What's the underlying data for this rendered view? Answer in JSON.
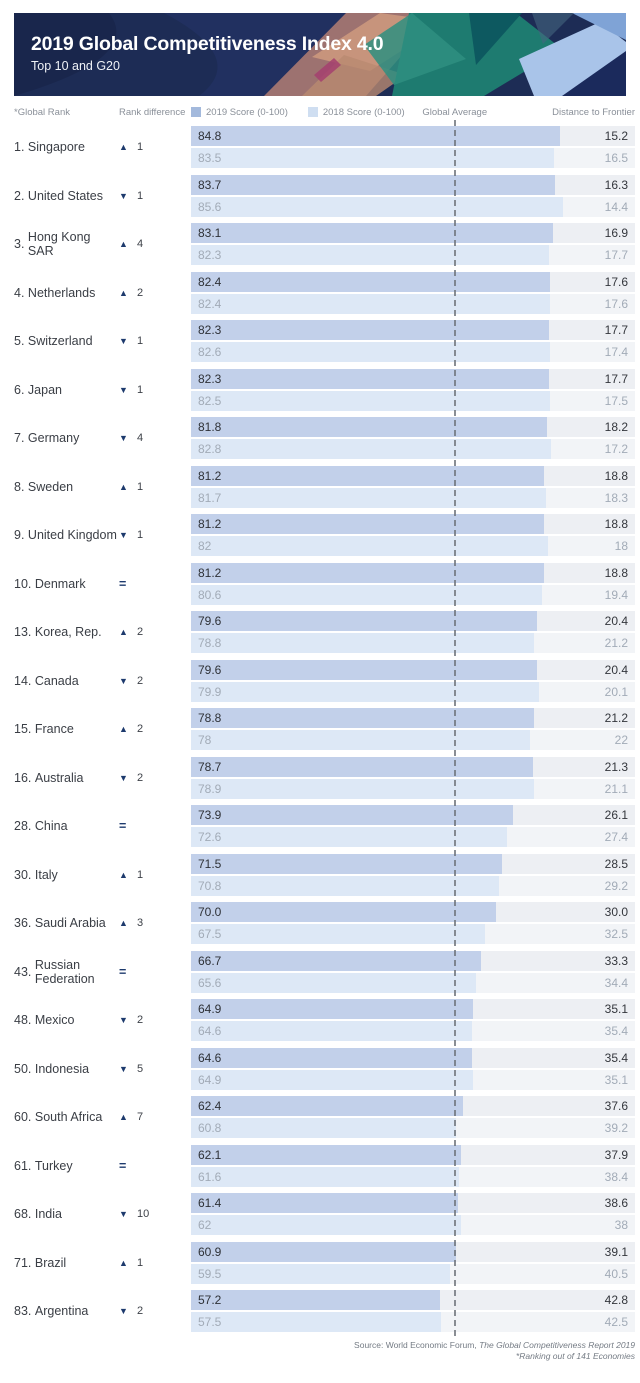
{
  "header": {
    "title": "2019 Global Competitiveness Index 4.0",
    "subtitle": "Top 10 and G20"
  },
  "columns": {
    "global_rank": "*Global Rank",
    "rank_difference": "Rank difference",
    "global_average": "Global Average",
    "distance_to_frontier": "Distance to Frontier"
  },
  "legend": {
    "score_2019": "2019 Score (0-100)",
    "score_2018": "2018 Score (0-100)"
  },
  "icons": {
    "up": "▲",
    "down": "▼",
    "same": "="
  },
  "colors": {
    "banner_bg": "#1d2c55",
    "bar_2019": "#c2d0ea",
    "bar_2018": "#dde8f6",
    "track_2019": "#edeff3",
    "track_2018": "#f2f4f7",
    "legend_2019": "#a3b9dc",
    "legend_2018": "#cfdef1",
    "marker": "#1d3a6d",
    "average_line": "#6e737a"
  },
  "footer": {
    "source_prefix": "Source:  World Economic Forum, ",
    "source_title": "The Global Competitiveness Report 2019",
    "note": "*Ranking out of 141 Economies"
  },
  "chart_data": {
    "type": "bar",
    "orientation": "horizontal",
    "title": "2019 Global Competitiveness Index 4.0",
    "subtitle": "Top 10 and G20",
    "xlim": [
      0,
      100
    ],
    "legend": [
      "2019 Score (0-100)",
      "2018 Score (0-100)"
    ],
    "global_average_approx": 60.6,
    "rows": [
      {
        "rank": "1.",
        "name": "Singapore",
        "dir": "up",
        "diff": "1",
        "s19": "84.8",
        "s18": "83.5",
        "d19": "15.2",
        "d18": "16.5"
      },
      {
        "rank": "2.",
        "name": "United States",
        "dir": "down",
        "diff": "1",
        "s19": "83.7",
        "s18": "85.6",
        "d19": "16.3",
        "d18": "14.4"
      },
      {
        "rank": "3.",
        "name": "Hong Kong SAR",
        "dir": "up",
        "diff": "4",
        "s19": "83.1",
        "s18": "82.3",
        "d19": "16.9",
        "d18": "17.7"
      },
      {
        "rank": "4.",
        "name": "Netherlands",
        "dir": "up",
        "diff": "2",
        "s19": "82.4",
        "s18": "82.4",
        "d19": "17.6",
        "d18": "17.6"
      },
      {
        "rank": "5.",
        "name": "Switzerland",
        "dir": "down",
        "diff": "1",
        "s19": "82.3",
        "s18": "82.6",
        "d19": "17.7",
        "d18": "17.4"
      },
      {
        "rank": "6.",
        "name": "Japan",
        "dir": "down",
        "diff": "1",
        "s19": "82.3",
        "s18": "82.5",
        "d19": "17.7",
        "d18": "17.5"
      },
      {
        "rank": "7.",
        "name": "Germany",
        "dir": "down",
        "diff": "4",
        "s19": "81.8",
        "s18": "82.8",
        "d19": "18.2",
        "d18": "17.2"
      },
      {
        "rank": "8.",
        "name": "Sweden",
        "dir": "up",
        "diff": "1",
        "s19": "81.2",
        "s18": "81.7",
        "d19": "18.8",
        "d18": "18.3"
      },
      {
        "rank": "9.",
        "name": "United Kingdom",
        "dir": "down",
        "diff": "1",
        "s19": "81.2",
        "s18": "82",
        "d19": "18.8",
        "d18": "18"
      },
      {
        "rank": "10.",
        "name": "Denmark",
        "dir": "same",
        "diff": "",
        "s19": "81.2",
        "s18": "80.6",
        "d19": "18.8",
        "d18": "19.4"
      },
      {
        "rank": "13.",
        "name": "Korea, Rep.",
        "dir": "up",
        "diff": "2",
        "s19": "79.6",
        "s18": "78.8",
        "d19": "20.4",
        "d18": "21.2"
      },
      {
        "rank": "14.",
        "name": "Canada",
        "dir": "down",
        "diff": "2",
        "s19": "79.6",
        "s18": "79.9",
        "d19": "20.4",
        "d18": "20.1"
      },
      {
        "rank": "15.",
        "name": "France",
        "dir": "up",
        "diff": "2",
        "s19": "78.8",
        "s18": "78",
        "d19": "21.2",
        "d18": "22"
      },
      {
        "rank": "16.",
        "name": "Australia",
        "dir": "down",
        "diff": "2",
        "s19": "78.7",
        "s18": "78.9",
        "d19": "21.3",
        "d18": "21.1"
      },
      {
        "rank": "28.",
        "name": "China",
        "dir": "same",
        "diff": "",
        "s19": "73.9",
        "s18": "72.6",
        "d19": "26.1",
        "d18": "27.4"
      },
      {
        "rank": "30.",
        "name": "Italy",
        "dir": "up",
        "diff": "1",
        "s19": "71.5",
        "s18": "70.8",
        "d19": "28.5",
        "d18": "29.2"
      },
      {
        "rank": "36.",
        "name": "Saudi Arabia",
        "dir": "up",
        "diff": "3",
        "s19": "70.0",
        "s18": "67.5",
        "d19": "30.0",
        "d18": "32.5"
      },
      {
        "rank": "43.",
        "name": "Russian Federation",
        "dir": "same",
        "diff": "",
        "s19": "66.7",
        "s18": "65.6",
        "d19": "33.3",
        "d18": "34.4"
      },
      {
        "rank": "48.",
        "name": "Mexico",
        "dir": "down",
        "diff": "2",
        "s19": "64.9",
        "s18": "64.6",
        "d19": "35.1",
        "d18": "35.4"
      },
      {
        "rank": "50.",
        "name": "Indonesia",
        "dir": "down",
        "diff": "5",
        "s19": "64.6",
        "s18": "64.9",
        "d19": "35.4",
        "d18": "35.1"
      },
      {
        "rank": "60.",
        "name": "South Africa",
        "dir": "up",
        "diff": "7",
        "s19": "62.4",
        "s18": "60.8",
        "d19": "37.6",
        "d18": "39.2"
      },
      {
        "rank": "61.",
        "name": "Turkey",
        "dir": "same",
        "diff": "",
        "s19": "62.1",
        "s18": "61.6",
        "d19": "37.9",
        "d18": "38.4"
      },
      {
        "rank": "68.",
        "name": "India",
        "dir": "down",
        "diff": "10",
        "s19": "61.4",
        "s18": "62",
        "d19": "38.6",
        "d18": "38"
      },
      {
        "rank": "71.",
        "name": "Brazil",
        "dir": "up",
        "diff": "1",
        "s19": "60.9",
        "s18": "59.5",
        "d19": "39.1",
        "d18": "40.5"
      },
      {
        "rank": "83.",
        "name": "Argentina",
        "dir": "down",
        "diff": "2",
        "s19": "57.2",
        "s18": "57.5",
        "d19": "42.8",
        "d18": "42.5"
      }
    ]
  }
}
